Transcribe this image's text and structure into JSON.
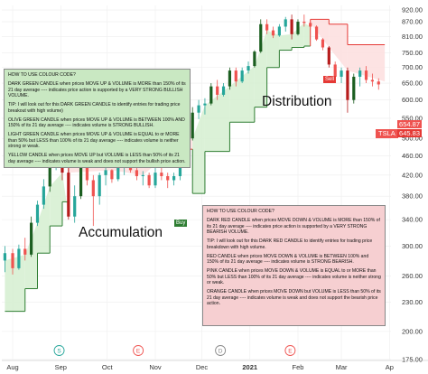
{
  "chart_data": {
    "type": "candlestick",
    "instrument": "TSLA",
    "y_ticks": [
      "920.00",
      "870.00",
      "810.00",
      "750.00",
      "700.00",
      "650.00",
      "600.00",
      "550.00",
      "500.00",
      "460.00",
      "420.00",
      "380.00",
      "340.00",
      "300.00",
      "260.00",
      "230.00",
      "200.00",
      "175.00"
    ],
    "ylim": [
      175,
      940
    ],
    "y_scale": "log",
    "grid": true,
    "x_ticks": [
      {
        "label": "Aug",
        "date": "2020-08-01"
      },
      {
        "label": "Sep",
        "date": "2020-09-01"
      },
      {
        "label": "Oct",
        "date": "2020-10-01"
      },
      {
        "label": "Nov",
        "date": "2020-11-01"
      },
      {
        "label": "Dec",
        "date": "2020-12-01"
      },
      {
        "label": "2021",
        "date": "2021-01-01",
        "bold": true
      },
      {
        "label": "Feb",
        "date": "2021-02-01"
      },
      {
        "label": "Mar",
        "date": "2021-03-01"
      },
      {
        "label": "Ap",
        "date": "2021-04-01"
      }
    ],
    "xlim": [
      "2020-07-25",
      "2021-04-02"
    ],
    "price_labels": {
      "current": "645.83",
      "upper": "654.87",
      "ticker": "TSLA"
    },
    "annotations": {
      "accumulation": "Accumulation",
      "distribution": "Distribution",
      "buy": "Buy",
      "sell": "Sell"
    },
    "event_markers": [
      {
        "letter": "S",
        "date": "2020-08-31",
        "color": "#26a69a"
      },
      {
        "letter": "E",
        "date": "2020-10-21",
        "color": "#ef5350"
      },
      {
        "letter": "D",
        "date": "2020-12-13",
        "color": "#888888"
      },
      {
        "letter": "E",
        "date": "2021-01-27",
        "color": "#ef5350"
      }
    ],
    "buy_date": "2020-11-24",
    "sell_date": "2021-01-27",
    "candles": [
      {
        "t": "2020-07-27",
        "o": 280,
        "h": 300,
        "l": 265,
        "c": 290
      },
      {
        "t": "2020-08-01",
        "o": 290,
        "h": 296,
        "l": 262,
        "c": 270
      },
      {
        "t": "2020-08-05",
        "o": 270,
        "h": 302,
        "l": 268,
        "c": 296
      },
      {
        "t": "2020-08-09",
        "o": 296,
        "h": 312,
        "l": 280,
        "c": 288
      },
      {
        "t": "2020-08-13",
        "o": 288,
        "h": 345,
        "l": 285,
        "c": 335
      },
      {
        "t": "2020-08-17",
        "o": 335,
        "h": 372,
        "l": 330,
        "c": 365
      },
      {
        "t": "2020-08-21",
        "o": 365,
        "h": 412,
        "l": 358,
        "c": 398
      },
      {
        "t": "2020-08-25",
        "o": 398,
        "h": 450,
        "l": 388,
        "c": 440
      },
      {
        "t": "2020-08-29",
        "o": 440,
        "h": 500,
        "l": 430,
        "c": 480
      },
      {
        "t": "2020-09-02",
        "o": 480,
        "h": 505,
        "l": 410,
        "c": 425
      },
      {
        "t": "2020-09-06",
        "o": 425,
        "h": 440,
        "l": 340,
        "c": 345
      },
      {
        "t": "2020-09-10",
        "o": 345,
        "h": 400,
        "l": 335,
        "c": 380
      },
      {
        "t": "2020-09-14",
        "o": 380,
        "h": 455,
        "l": 375,
        "c": 440
      },
      {
        "t": "2020-09-18",
        "o": 440,
        "h": 460,
        "l": 400,
        "c": 410
      },
      {
        "t": "2020-09-22",
        "o": 410,
        "h": 420,
        "l": 330,
        "c": 380
      },
      {
        "t": "2020-09-26",
        "o": 380,
        "h": 425,
        "l": 365,
        "c": 420
      },
      {
        "t": "2020-09-30",
        "o": 420,
        "h": 445,
        "l": 400,
        "c": 430
      },
      {
        "t": "2020-10-04",
        "o": 430,
        "h": 432,
        "l": 405,
        "c": 412
      },
      {
        "t": "2020-10-08",
        "o": 412,
        "h": 448,
        "l": 408,
        "c": 438
      },
      {
        "t": "2020-10-12",
        "o": 438,
        "h": 460,
        "l": 420,
        "c": 445
      },
      {
        "t": "2020-10-16",
        "o": 445,
        "h": 450,
        "l": 425,
        "c": 430
      },
      {
        "t": "2020-10-20",
        "o": 430,
        "h": 448,
        "l": 410,
        "c": 418
      },
      {
        "t": "2020-10-24",
        "o": 418,
        "h": 428,
        "l": 400,
        "c": 420
      },
      {
        "t": "2020-10-28",
        "o": 420,
        "h": 425,
        "l": 395,
        "c": 400
      },
      {
        "t": "2020-11-01",
        "o": 400,
        "h": 440,
        "l": 395,
        "c": 425
      },
      {
        "t": "2020-11-05",
        "o": 425,
        "h": 440,
        "l": 410,
        "c": 418
      },
      {
        "t": "2020-11-09",
        "o": 418,
        "h": 425,
        "l": 395,
        "c": 410
      },
      {
        "t": "2020-11-13",
        "o": 410,
        "h": 425,
        "l": 400,
        "c": 418
      },
      {
        "t": "2020-11-17",
        "o": 418,
        "h": 460,
        "l": 410,
        "c": 455
      },
      {
        "t": "2020-11-21",
        "o": 455,
        "h": 510,
        "l": 450,
        "c": 500
      },
      {
        "t": "2020-11-25",
        "o": 500,
        "h": 580,
        "l": 495,
        "c": 565
      },
      {
        "t": "2020-11-29",
        "o": 565,
        "h": 600,
        "l": 548,
        "c": 585
      },
      {
        "t": "2020-12-03",
        "o": 585,
        "h": 605,
        "l": 560,
        "c": 590
      },
      {
        "t": "2020-12-07",
        "o": 590,
        "h": 650,
        "l": 585,
        "c": 640
      },
      {
        "t": "2020-12-11",
        "o": 640,
        "h": 660,
        "l": 600,
        "c": 615
      },
      {
        "t": "2020-12-15",
        "o": 615,
        "h": 650,
        "l": 610,
        "c": 640
      },
      {
        "t": "2020-12-19",
        "o": 640,
        "h": 700,
        "l": 630,
        "c": 690
      },
      {
        "t": "2020-12-23",
        "o": 690,
        "h": 700,
        "l": 640,
        "c": 655
      },
      {
        "t": "2020-12-27",
        "o": 655,
        "h": 700,
        "l": 650,
        "c": 690
      },
      {
        "t": "2020-12-31",
        "o": 690,
        "h": 720,
        "l": 680,
        "c": 705
      },
      {
        "t": "2021-01-04",
        "o": 705,
        "h": 760,
        "l": 700,
        "c": 755
      },
      {
        "t": "2021-01-08",
        "o": 755,
        "h": 880,
        "l": 750,
        "c": 860
      },
      {
        "t": "2021-01-12",
        "o": 860,
        "h": 880,
        "l": 820,
        "c": 835
      },
      {
        "t": "2021-01-16",
        "o": 835,
        "h": 850,
        "l": 805,
        "c": 815
      },
      {
        "t": "2021-01-20",
        "o": 815,
        "h": 860,
        "l": 810,
        "c": 850
      },
      {
        "t": "2021-01-24",
        "o": 850,
        "h": 890,
        "l": 830,
        "c": 880
      },
      {
        "t": "2021-01-28",
        "o": 880,
        "h": 900,
        "l": 800,
        "c": 820
      },
      {
        "t": "2021-02-01",
        "o": 820,
        "h": 880,
        "l": 815,
        "c": 870
      },
      {
        "t": "2021-02-05",
        "o": 870,
        "h": 900,
        "l": 850,
        "c": 865
      },
      {
        "t": "2021-02-09",
        "o": 865,
        "h": 875,
        "l": 840,
        "c": 850
      },
      {
        "t": "2021-02-13",
        "o": 850,
        "h": 855,
        "l": 795,
        "c": 800
      },
      {
        "t": "2021-02-17",
        "o": 800,
        "h": 805,
        "l": 760,
        "c": 770
      },
      {
        "t": "2021-02-21",
        "o": 770,
        "h": 775,
        "l": 700,
        "c": 710
      },
      {
        "t": "2021-02-25",
        "o": 710,
        "h": 720,
        "l": 660,
        "c": 670
      },
      {
        "t": "2021-03-01",
        "o": 670,
        "h": 700,
        "l": 650,
        "c": 690
      },
      {
        "t": "2021-03-05",
        "o": 690,
        "h": 700,
        "l": 565,
        "c": 600
      },
      {
        "t": "2021-03-09",
        "o": 600,
        "h": 680,
        "l": 590,
        "c": 670
      },
      {
        "t": "2021-03-13",
        "o": 670,
        "h": 700,
        "l": 640,
        "c": 690
      },
      {
        "t": "2021-03-17",
        "o": 690,
        "h": 705,
        "l": 650,
        "c": 660
      },
      {
        "t": "2021-03-21",
        "o": 660,
        "h": 680,
        "l": 640,
        "c": 655
      },
      {
        "t": "2021-03-25",
        "o": 655,
        "h": 665,
        "l": 630,
        "c": 646
      }
    ],
    "trailing_stop": [
      {
        "t": "2020-07-27",
        "v": 220,
        "side": "support"
      },
      {
        "t": "2020-08-09",
        "v": 245,
        "side": "support"
      },
      {
        "t": "2020-08-17",
        "v": 290,
        "side": "support"
      },
      {
        "t": "2020-08-25",
        "v": 330,
        "side": "support"
      },
      {
        "t": "2020-09-02",
        "v": 370,
        "side": "support"
      },
      {
        "t": "2020-09-06",
        "v": 520,
        "side": "resistance"
      },
      {
        "t": "2020-10-04",
        "v": 500,
        "side": "resistance"
      },
      {
        "t": "2020-10-24",
        "v": 480,
        "side": "resistance"
      },
      {
        "t": "2020-11-21",
        "v": 475,
        "side": "resistance"
      },
      {
        "t": "2020-11-25",
        "v": 385,
        "side": "support"
      },
      {
        "t": "2020-12-03",
        "v": 470,
        "side": "support"
      },
      {
        "t": "2020-12-19",
        "v": 540,
        "side": "support"
      },
      {
        "t": "2021-01-04",
        "v": 580,
        "side": "support"
      },
      {
        "t": "2021-01-12",
        "v": 700,
        "side": "support"
      },
      {
        "t": "2021-01-20",
        "v": 760,
        "side": "support"
      },
      {
        "t": "2021-01-28",
        "v": 770,
        "side": "support"
      },
      {
        "t": "2021-02-05",
        "v": 775,
        "side": "support"
      },
      {
        "t": "2021-02-09",
        "v": 880,
        "side": "resistance"
      },
      {
        "t": "2021-02-21",
        "v": 860,
        "side": "resistance"
      },
      {
        "t": "2021-03-05",
        "v": 780,
        "side": "resistance"
      },
      {
        "t": "2021-03-29",
        "v": 780,
        "side": "resistance"
      }
    ]
  },
  "notes": {
    "green": {
      "heading": "HOW TO USE COLOUR CODE?",
      "p1": "DARK GREEN CANDLE when prices MOVE UP & VOLUME is MORE than 150% of its 21 day average ---- indicates price action is supported by a VERY STRONG BULLISH VOLUME.",
      "p2": "TIP: I will look out for this DARK GREEN CANDLE to identify entries for trading price breakout with high volume)",
      "p3": "OLIVE GREEN CANDLE when prices MOVE UP & VOLUME is BETWEEN 100% AND 150% of its 21 day average ---- indicates volume is STRONG BULLISH.",
      "p4": "LIGHT GREEN CANDLE when prices MOVE UP & VOLUME is EQUAL to or MORE than 50% but LESS than 100% of its 21 day average ---- indicates volume is neither strong or weak.",
      "p5": "YELLOW CANDLE when prices MOVE UP but VOLUME is LESS than 50% of its 21 day average ---- indicates volume is weak and does not support the bullish price action."
    },
    "red": {
      "heading": "HOW TO USE COLOUR CODE?",
      "p1": "DARK RED CANDLE when prices MOVE DOWN & VOLUME is MORE than 150% of its 21 day average ---- indicates price action is supported by a VERY STRONG BEARISH VOLUME.",
      "p2": "TIP: I will look out for this DARK RED CANDLE to identify entries for trading price breakdown with high volume.",
      "p3": "RED CANDLE when prices MOVE DOWN & VOLUME is BETWEEN 100% and 150% of its 21 day average ---- indicates volume is STRONG BEARISH.",
      "p4": "PINK CANDLE when prices MOVE DOWN & VOLUME is EQUAL to or MORE than 50% but LESS than 100% of its 21 day average ---- indicates volume is neither strong or weak.",
      "p5": "ORANGE CANDLE when prices MOVE DOWN but VOLUME is LESS than 50% of its 21 day average ---- indicates volume is weak and does not support the bearish price action."
    }
  },
  "colors": {
    "up": "#26a69a",
    "up_dark": "#1b5e20",
    "down": "#ef5350",
    "down_dark": "#b71c1c",
    "support_line": "#2e7d32",
    "support_fill": "#d7f0d3",
    "resistance_line": "#e53935",
    "resistance_fill": "#fde0e0",
    "grid": "#eeeeee"
  }
}
